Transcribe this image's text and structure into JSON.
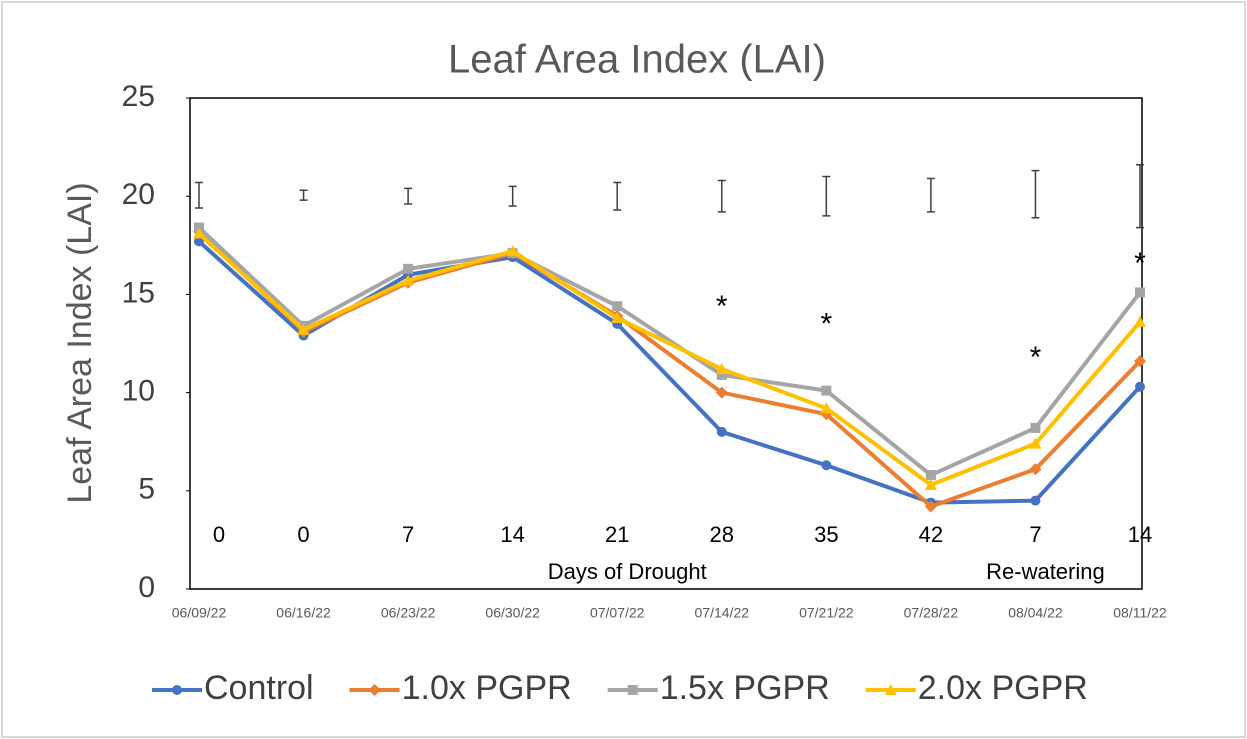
{
  "chart_data": {
    "type": "line",
    "title": "Leaf Area Index (LAI)",
    "y_label": "Leaf Area Index (LAI)",
    "categories": [
      "06/09/22",
      "06/16/22",
      "06/23/22",
      "06/30/22",
      "07/07/22",
      "07/14/22",
      "07/21/22",
      "07/28/22",
      "08/04/22",
      "08/11/22"
    ],
    "series": [
      {
        "name": "Control",
        "color": "#4472c4",
        "marker": "circle",
        "values": [
          17.7,
          12.9,
          16.0,
          16.9,
          13.5,
          8.0,
          6.3,
          4.4,
          4.5,
          10.3
        ]
      },
      {
        "name": "1.0x PGPR",
        "color": "#ed7d31",
        "marker": "diamond",
        "values": [
          18.2,
          13.1,
          15.6,
          17.1,
          13.9,
          10.0,
          8.9,
          4.2,
          6.1,
          11.6
        ]
      },
      {
        "name": "1.5x PGPR",
        "color": "#a5a5a5",
        "marker": "square",
        "values": [
          18.4,
          13.4,
          16.3,
          17.1,
          14.4,
          10.9,
          10.1,
          5.8,
          8.2,
          15.1
        ]
      },
      {
        "name": "2.0x PGPR",
        "color": "#ffc000",
        "marker": "triangle",
        "values": [
          18.1,
          13.2,
          15.7,
          17.2,
          13.8,
          11.2,
          9.2,
          5.3,
          7.4,
          13.6
        ]
      }
    ],
    "error_bars": {
      "color": "#404040",
      "low": [
        19.4,
        19.8,
        19.6,
        19.5,
        19.3,
        19.2,
        19.0,
        19.2,
        18.9,
        18.4
      ],
      "high": [
        20.7,
        20.3,
        20.4,
        20.5,
        20.7,
        20.8,
        21.0,
        20.9,
        21.3,
        21.6
      ]
    },
    "annotations": [
      {
        "text": "*",
        "category": "07/14/22",
        "y": 14.3
      },
      {
        "text": "*",
        "category": "07/21/22",
        "y": 13.4
      },
      {
        "text": "*",
        "category": "08/04/22",
        "y": 11.7
      },
      {
        "text": "*",
        "category": "08/11/22",
        "y": 16.5
      }
    ],
    "day_labels": [
      "0",
      "0",
      "7",
      "14",
      "21",
      "28",
      "35",
      "42",
      "7",
      "14"
    ],
    "day_labels_y": 2.7,
    "phase_labels": [
      {
        "text": "Days of Drought",
        "category": "07/07/22",
        "y": 0.8
      },
      {
        "text": "Re-watering",
        "category": "08/04/22",
        "y": 0.8
      }
    ],
    "ylim": [
      0,
      25
    ],
    "yticks": [
      0,
      5,
      10,
      15,
      20,
      25
    ],
    "grid": false,
    "legend": "bottom"
  }
}
